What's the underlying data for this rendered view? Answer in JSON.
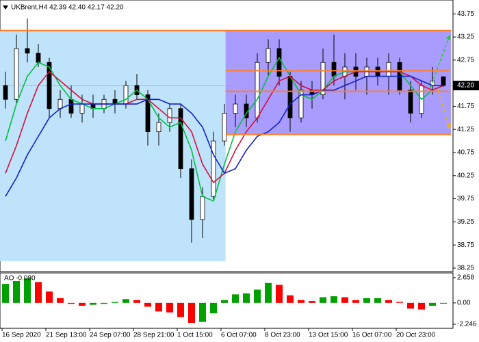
{
  "chart_data": [
    {
      "type": "candlestick",
      "title": "UKBrent,H4 42.39 42.40 42.17 42.20",
      "categories": [
        "16 Sep 2020",
        null,
        null,
        null,
        "21 Sep 13:00",
        null,
        null,
        null,
        "24 Sep 07:00",
        null,
        null,
        null,
        "28 Sep 21:00",
        null,
        null,
        null,
        "1 Oct 15:00",
        null,
        null,
        null,
        "6 Oct 07:00",
        null,
        null,
        null,
        "8 Oct 23:00",
        null,
        null,
        null,
        "13 Oct 15:00",
        null,
        null,
        null,
        "16 Oct 07:00",
        null,
        null,
        null,
        "20 Oct 23:00",
        null,
        null,
        null,
        null
      ],
      "open": [
        42.2,
        41.9,
        43.0,
        42.9,
        42.7,
        41.7,
        41.9,
        41.6,
        41.8,
        41.7,
        41.9,
        41.8,
        42.2,
        42.0,
        41.2,
        41.4,
        41.7,
        40.4,
        39.3,
        39.8,
        41.0,
        41.6,
        41.8,
        41.5,
        42.7,
        43.0,
        42.4,
        41.5,
        42.1,
        42.0,
        42.7,
        42.4,
        42.6,
        42.4,
        42.6,
        42.4,
        42.7,
        42.1,
        41.6,
        42.2,
        42.39
      ],
      "high": [
        42.5,
        43.3,
        43.65,
        43.1,
        42.8,
        42.1,
        42.2,
        42.0,
        42.0,
        42.0,
        42.1,
        42.3,
        42.45,
        42.1,
        41.6,
        41.8,
        41.8,
        40.6,
        40.0,
        41.2,
        41.8,
        42.0,
        42.0,
        42.9,
        43.2,
        43.2,
        42.5,
        42.3,
        42.3,
        43.0,
        43.3,
        42.9,
        42.9,
        42.8,
        42.8,
        42.9,
        42.8,
        42.3,
        42.3,
        42.6,
        42.4
      ],
      "low": [
        41.7,
        41.8,
        42.7,
        42.6,
        41.5,
        41.5,
        41.5,
        41.4,
        41.5,
        41.6,
        41.6,
        41.7,
        41.9,
        40.9,
        40.9,
        41.2,
        40.2,
        38.8,
        38.9,
        39.7,
        40.9,
        41.3,
        41.3,
        41.4,
        42.4,
        42.2,
        41.2,
        41.4,
        41.7,
        41.9,
        42.2,
        41.9,
        42.1,
        42.0,
        42.2,
        42.0,
        42.0,
        41.4,
        41.5,
        42.0,
        42.17
      ],
      "close": [
        41.9,
        43.0,
        42.9,
        42.7,
        41.7,
        41.9,
        41.6,
        41.8,
        41.7,
        41.9,
        41.8,
        42.2,
        42.0,
        41.2,
        41.4,
        41.7,
        40.4,
        39.3,
        39.8,
        41.0,
        41.6,
        41.8,
        41.5,
        42.7,
        43.0,
        42.4,
        41.5,
        42.1,
        42.0,
        42.7,
        42.4,
        42.6,
        42.4,
        42.6,
        42.4,
        42.7,
        42.1,
        41.6,
        42.2,
        42.3,
        42.2
      ],
      "up_fill": "#ffffff",
      "down_fill": "#000000",
      "candle_color": "#000000",
      "series": [
        {
          "color": "#00c040",
          "values": [
            41.0,
            41.8,
            42.4,
            42.7,
            42.6,
            42.2,
            41.9,
            41.8,
            41.7,
            41.7,
            41.8,
            41.9,
            42.1,
            41.9,
            41.5,
            41.3,
            41.4,
            40.8,
            39.8,
            39.7,
            40.5,
            41.2,
            41.6,
            41.9,
            42.4,
            42.8,
            42.4,
            42.0,
            41.9,
            42.1,
            42.4,
            42.5,
            42.5,
            42.5,
            42.5,
            42.5,
            42.5,
            42.2,
            41.9,
            42.1,
            42.2
          ]
        },
        {
          "color": "#d0103a",
          "values": [
            40.3,
            40.9,
            41.6,
            42.2,
            42.5,
            42.3,
            42.1,
            41.9,
            41.8,
            41.8,
            41.8,
            41.8,
            41.9,
            41.9,
            41.7,
            41.5,
            41.5,
            41.2,
            40.5,
            40.1,
            40.3,
            40.8,
            41.2,
            41.5,
            41.9,
            42.3,
            42.4,
            42.2,
            42.1,
            42.1,
            42.3,
            42.4,
            42.5,
            42.5,
            42.5,
            42.5,
            42.5,
            42.4,
            42.2,
            42.1,
            42.2
          ]
        },
        {
          "color": "#1420c8",
          "values": [
            39.8,
            40.2,
            40.7,
            41.1,
            41.5,
            41.7,
            41.8,
            41.8,
            41.8,
            41.8,
            41.8,
            41.8,
            41.8,
            41.9,
            41.9,
            41.8,
            41.8,
            41.6,
            41.3,
            40.7,
            40.3,
            40.4,
            40.8,
            41.1,
            41.2,
            41.4,
            41.8,
            42.0,
            42.0,
            42.1,
            42.1,
            42.2,
            42.3,
            42.4,
            42.4,
            42.4,
            42.4,
            42.4,
            42.3,
            42.2,
            42.2
          ]
        }
      ],
      "zones": [
        {
          "x": [
            -0.5,
            20.1
          ],
          "y": [
            38.4,
            43.39
          ],
          "color": "#bfe3fb"
        },
        {
          "x": [
            20.1,
            40.7
          ],
          "y": [
            41.14,
            43.39
          ],
          "color": "#a99cff"
        }
      ],
      "levels": [
        {
          "value": 43.39,
          "x": [
            -0.5,
            40.7
          ],
          "color": "#ff7f27"
        },
        {
          "value": 41.14,
          "x": [
            20.1,
            40.7
          ],
          "color": "#ff7f27"
        },
        {
          "value": 42.52,
          "x": [
            20.1,
            40.5
          ],
          "color": "#ff7f27"
        },
        {
          "value": 42.075,
          "x": [
            20.1,
            40.5
          ],
          "color": "#ff7f27"
        }
      ],
      "arrows": [
        {
          "x": [
            38.8,
            40.6
          ],
          "y": [
            42.15,
            43.3
          ],
          "color": "#22cc22"
        },
        {
          "x": [
            39.5,
            40.6
          ],
          "y": [
            42.1,
            41.25
          ],
          "color": "#f0b400"
        }
      ],
      "last_price": {
        "value": 42.2,
        "label": "42.20"
      },
      "ylim": [
        38.19,
        44.05
      ],
      "yticks": [
        43.75,
        43.25,
        42.75,
        41.75,
        41.25,
        40.75,
        40.25,
        39.75,
        39.25,
        38.75,
        38.25
      ]
    },
    {
      "type": "bar",
      "title": "AO -0.080",
      "values": [
        2.0,
        2.3,
        2.6,
        2.2,
        1.2,
        0.5,
        -0.1,
        -0.3,
        -0.2,
        -0.1,
        0.1,
        0.4,
        0.3,
        -0.4,
        -0.9,
        -1.0,
        -1.5,
        -2.1,
        -2.0,
        -1.1,
        0.3,
        0.9,
        1.0,
        1.4,
        2.1,
        1.9,
        0.8,
        0.3,
        0.2,
        0.6,
        0.7,
        0.6,
        0.3,
        0.5,
        0.5,
        0.3,
        0.1,
        -0.6,
        -0.7,
        -0.3,
        -0.08
      ],
      "up_color": "#00a000",
      "down_color": "#ff0000",
      "ylim": [
        -2.68,
        3.09
      ],
      "yticks": [
        2.658,
        {
          "value": 0,
          "label": "0.00"
        },
        -2.246
      ]
    }
  ]
}
